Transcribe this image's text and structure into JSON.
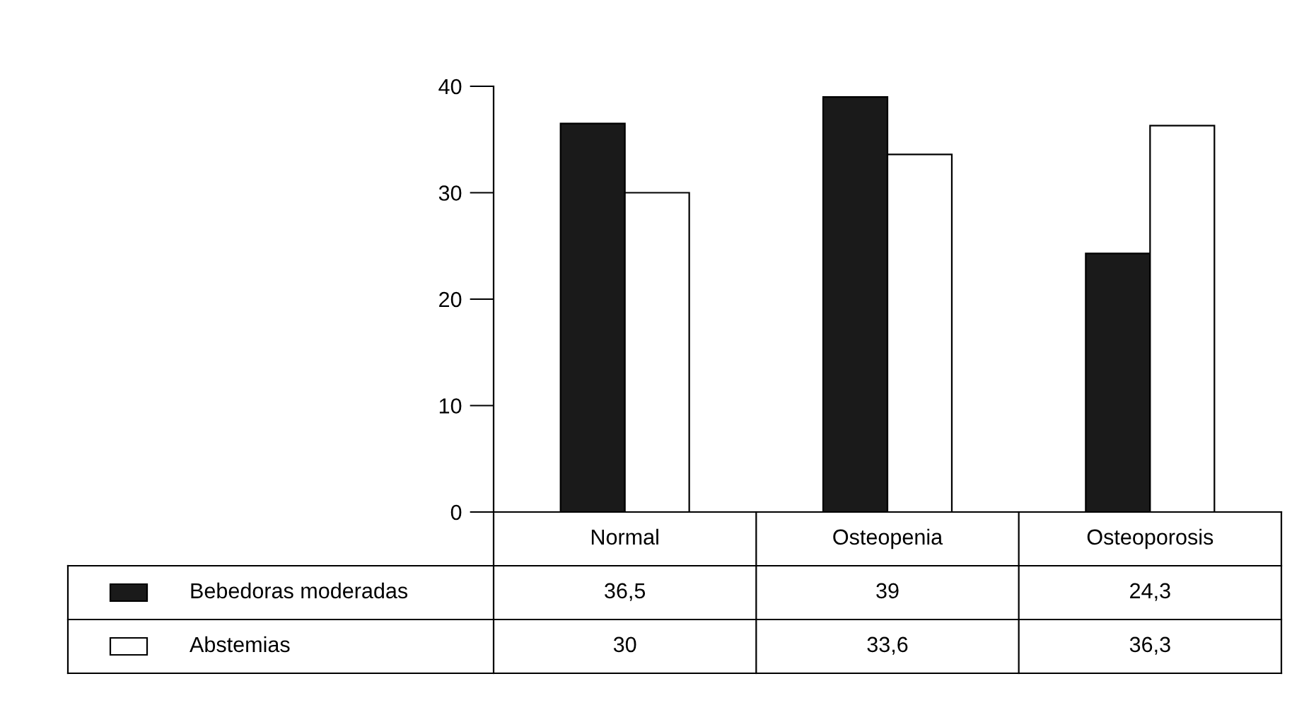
{
  "chart_data": {
    "type": "bar",
    "categories": [
      "Normal",
      "Osteopenia",
      "Osteoporosis"
    ],
    "series": [
      {
        "name": "Bebedoras moderadas",
        "color": "#1a1a1a",
        "values": [
          36.5,
          39,
          24.3
        ],
        "value_labels": [
          "36,5",
          "39",
          "24,3"
        ]
      },
      {
        "name": "Abstemias",
        "color": "#ffffff",
        "values": [
          30,
          33.6,
          36.3
        ],
        "value_labels": [
          "30",
          "33,6",
          "36,3"
        ]
      }
    ],
    "ylim": [
      0,
      40
    ],
    "yticks": [
      0,
      10,
      20,
      30,
      40
    ],
    "grid": false,
    "legend": "bottom"
  }
}
